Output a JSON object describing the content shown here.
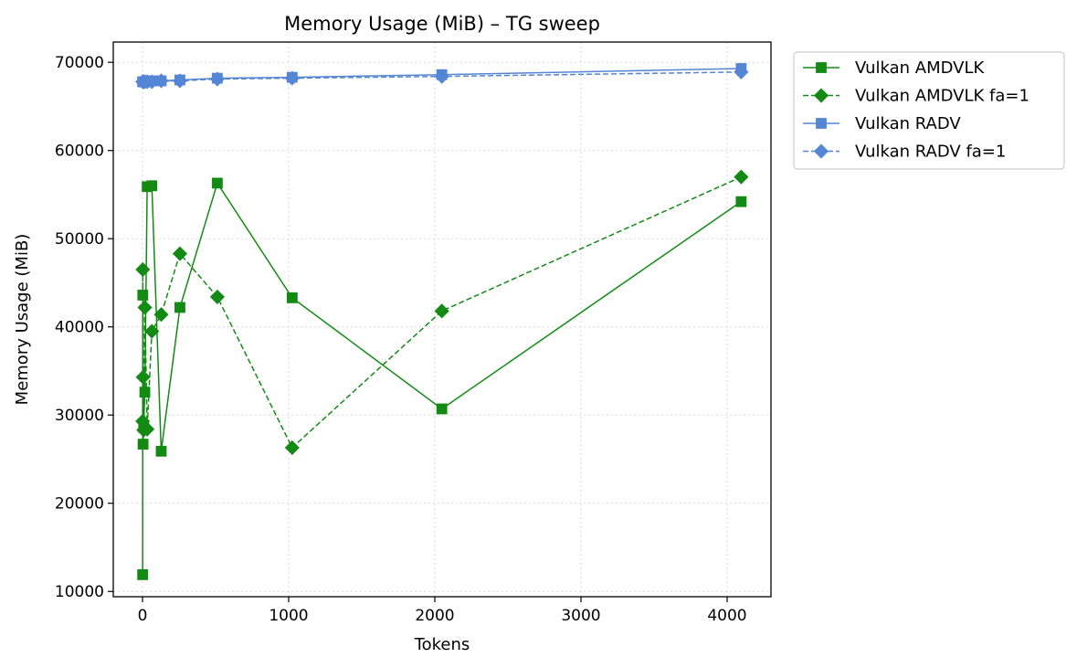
{
  "chart_data": {
    "type": "line",
    "title": "Memory Usage (MiB) – TG sweep",
    "xlabel": "Tokens",
    "ylabel": "Memory Usage (MiB)",
    "xlim": [
      -200,
      4300
    ],
    "ylim": [
      9400,
      72300
    ],
    "xticks": [
      0,
      1000,
      2000,
      3000,
      4000
    ],
    "xtick_labels": [
      "0",
      "1000",
      "2000",
      "3000",
      "4000"
    ],
    "yticks": [
      10000,
      20000,
      30000,
      40000,
      50000,
      60000,
      70000
    ],
    "ytick_labels": [
      "10000",
      "20000",
      "30000",
      "40000",
      "50000",
      "60000",
      "70000"
    ],
    "grid": true,
    "legend_position": "outside-top-right",
    "series": [
      {
        "name": "Vulkan AMDVLK",
        "color": "#138a13",
        "dashed": false,
        "marker": "square",
        "x": [
          1,
          2,
          4,
          8,
          16,
          32,
          64,
          128,
          256,
          512,
          1024,
          2048,
          4096
        ],
        "y": [
          11900,
          43600,
          26700,
          28600,
          32600,
          55900,
          56000,
          25900,
          42200,
          56300,
          43300,
          30700,
          54200
        ]
      },
      {
        "name": "Vulkan AMDVLK fa=1",
        "color": "#138a13",
        "dashed": true,
        "marker": "diamond",
        "x": [
          1,
          2,
          4,
          8,
          16,
          32,
          64,
          128,
          256,
          512,
          1024,
          2048,
          4096
        ],
        "y": [
          29300,
          46500,
          34300,
          28300,
          42200,
          28400,
          39500,
          41400,
          48300,
          43400,
          26300,
          41800,
          57000
        ]
      },
      {
        "name": "Vulkan RADV",
        "color": "#5585d5",
        "dashed": false,
        "marker": "square",
        "x": [
          1,
          2,
          4,
          8,
          16,
          32,
          64,
          128,
          256,
          512,
          1024,
          2048,
          4096
        ],
        "y": [
          67800,
          67800,
          67800,
          67800,
          67800,
          67900,
          67900,
          67900,
          68000,
          68200,
          68300,
          68600,
          69300
        ]
      },
      {
        "name": "Vulkan RADV fa=1",
        "color": "#5585d5",
        "dashed": true,
        "marker": "diamond",
        "x": [
          1,
          2,
          4,
          8,
          16,
          32,
          64,
          128,
          256,
          512,
          1024,
          2048,
          4096
        ],
        "y": [
          67800,
          67800,
          67800,
          67800,
          67800,
          67800,
          67800,
          67900,
          67900,
          68100,
          68200,
          68400,
          68900
        ]
      }
    ]
  }
}
